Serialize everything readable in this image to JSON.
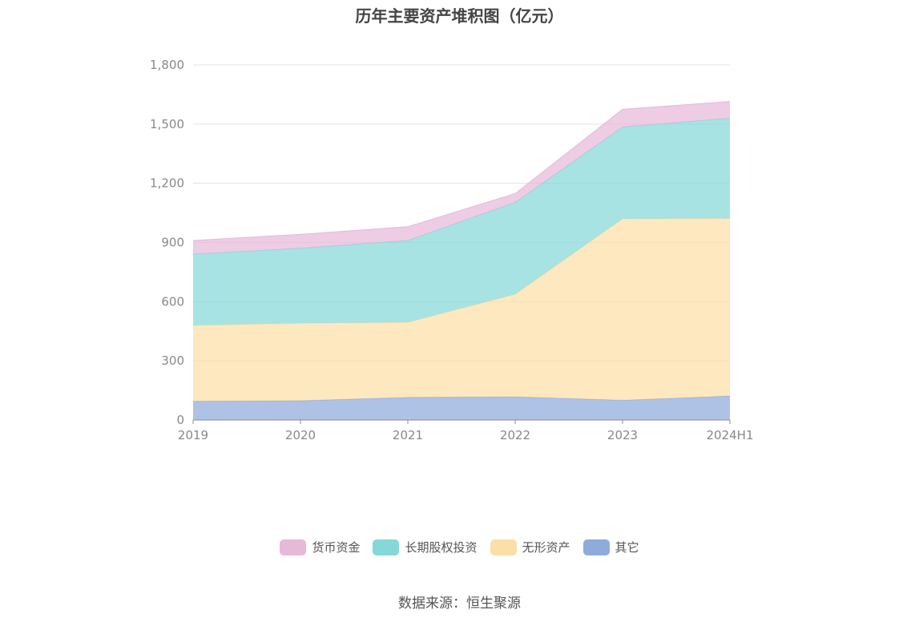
{
  "chart_data": {
    "type": "area",
    "stacked": true,
    "title": "历年主要资产堆积图（亿元）",
    "categories": [
      "2019",
      "2020",
      "2021",
      "2022",
      "2023",
      "2024H1"
    ],
    "y_ticks": [
      "0",
      "300",
      "600",
      "900",
      "1,200",
      "1,500",
      "1,800"
    ],
    "ylim": [
      0,
      1800
    ],
    "grid": true,
    "legend_position": "bottom",
    "series": [
      {
        "name": "其它",
        "color": "#8fabdc",
        "values": [
          95,
          98,
          115,
          118,
          100,
          122
        ]
      },
      {
        "name": "无形资产",
        "color": "#fcdfa6",
        "values": [
          385,
          393,
          380,
          520,
          920,
          900
        ]
      },
      {
        "name": "长期股权投资",
        "color": "#86d8d8",
        "values": [
          360,
          380,
          415,
          465,
          465,
          508
        ]
      },
      {
        "name": "货币资金",
        "color": "#e6b9d9",
        "values": [
          70,
          70,
          70,
          45,
          90,
          85
        ]
      }
    ]
  },
  "legend": {
    "items": [
      {
        "label": "货币资金",
        "color": "#e6b9d9"
      },
      {
        "label": "长期股权投资",
        "color": "#86d8d8"
      },
      {
        "label": "无形资产",
        "color": "#fcdfa6"
      },
      {
        "label": "其它",
        "color": "#8fabdc"
      }
    ]
  },
  "source": "数据来源：恒生聚源"
}
